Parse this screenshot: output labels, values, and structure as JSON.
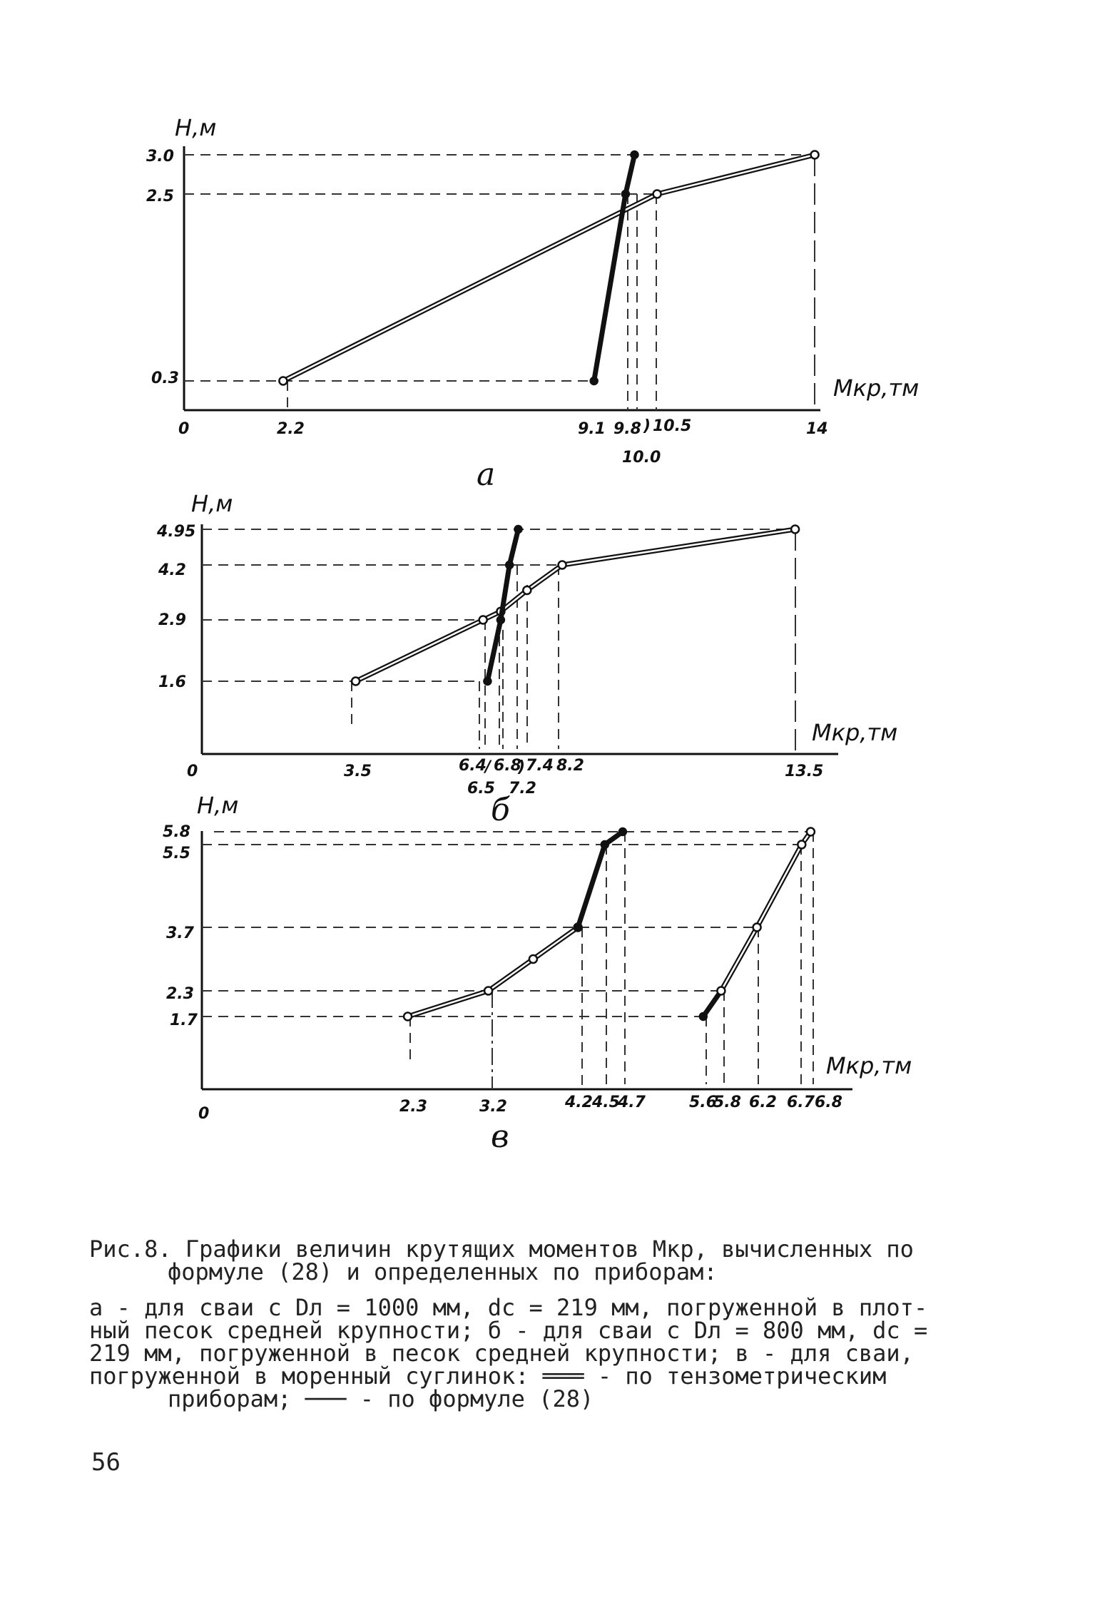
{
  "chart_data": [
    {
      "panel": "а",
      "type": "line",
      "ylabel": "Н,м",
      "xlabel": "Мкр,тм",
      "x_origin_label": "0",
      "y_ticks": [
        "3.0",
        "2.5",
        "0.3"
      ],
      "x_ticks": [
        "2.2",
        "9.1",
        "9.8",
        "10.5",
        "14",
        "10.0"
      ],
      "series": [
        {
          "style": "double",
          "points": [
            [
              2.2,
              0.3
            ],
            [
              10.5,
              2.5
            ],
            [
              14,
              3.0
            ]
          ]
        },
        {
          "style": "bold",
          "points": [
            [
              9.1,
              0.3
            ],
            [
              9.8,
              2.5
            ],
            [
              10.0,
              3.0
            ]
          ]
        }
      ]
    },
    {
      "panel": "б",
      "type": "line",
      "ylabel": "Н,м",
      "xlabel": "Мкр,тм",
      "x_origin_label": "0",
      "y_ticks": [
        "4.95",
        "4.2",
        "2.9",
        "1.6"
      ],
      "x_ticks": [
        "3.5",
        "6.4",
        "6.8",
        "7.4",
        "8.2",
        "13.5",
        "6.5",
        "7.2"
      ],
      "series": [
        {
          "style": "double",
          "points": [
            [
              3.5,
              1.6
            ],
            [
              6.4,
              2.9
            ],
            [
              6.8,
              3.1
            ],
            [
              7.4,
              3.6
            ],
            [
              8.2,
              4.2
            ],
            [
              13.5,
              4.95
            ]
          ]
        },
        {
          "style": "bold",
          "points": [
            [
              6.5,
              1.6
            ],
            [
              6.8,
              2.9
            ],
            [
              7.0,
              4.2
            ],
            [
              7.2,
              4.95
            ]
          ]
        }
      ]
    },
    {
      "panel": "в",
      "type": "line",
      "ylabel": "Н,м",
      "xlabel": "Мкр,тм",
      "x_origin_label": "0",
      "y_ticks": [
        "5.8",
        "5.5",
        "3.7",
        "2.3",
        "1.7"
      ],
      "x_ticks": [
        "2.3",
        "3.2",
        "4.2",
        "4.5",
        "4.7",
        "5.6",
        "5.8",
        "6.2",
        "6.7",
        "6.8"
      ],
      "series": [
        {
          "style": "double",
          "points": [
            [
              2.3,
              1.7
            ],
            [
              3.2,
              2.3
            ],
            [
              3.7,
              3.0
            ],
            [
              4.2,
              3.7
            ]
          ]
        },
        {
          "style": "bold",
          "points": [
            [
              4.2,
              3.7
            ],
            [
              4.5,
              5.5
            ],
            [
              4.7,
              5.8
            ]
          ]
        },
        {
          "style": "bold",
          "points": [
            [
              5.6,
              1.7
            ],
            [
              5.8,
              2.3
            ]
          ]
        },
        {
          "style": "double",
          "points": [
            [
              5.8,
              2.3
            ],
            [
              6.2,
              3.7
            ],
            [
              6.7,
              5.5
            ],
            [
              6.8,
              5.8
            ]
          ]
        }
      ]
    }
  ],
  "caption": {
    "line1": "Рис.8. Графики величин крутящих моментов Мкр, вычисленных по",
    "line2": "формуле (28) и определенных по приборам:",
    "line3": "а - для сваи с Dл = 1000 мм, dс = 219 мм, погруженной в плот-",
    "line4": "ный песок средней крупности; б - для сваи с Dл = 800 мм, dс =",
    "line5": "219 мм, погруженной в песок средней крупности; в - для сваи,",
    "line6": "погруженной в моренный суглинок: ═══ - по тензометрическим",
    "line7": "приборам; ─── - по формуле (28)"
  },
  "page_number": "56"
}
